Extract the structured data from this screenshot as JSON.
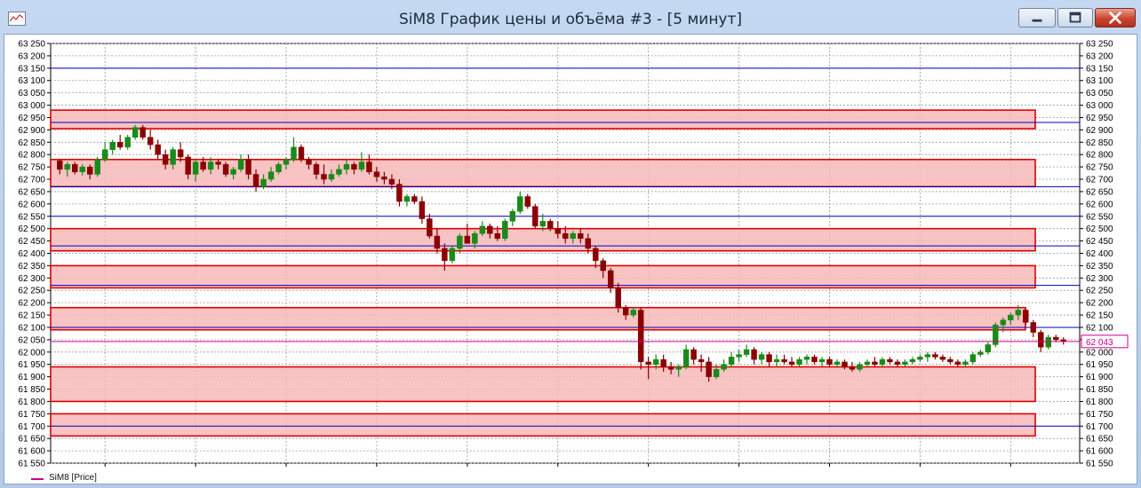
{
  "window": {
    "title": "SiM8 График цены и объёма #3 - [5 минут]",
    "buttons": {
      "minimize": "minimize",
      "maximize": "maximize",
      "close": "close"
    }
  },
  "legend": {
    "label": "SiM8 [Price]",
    "color": "#cc0088"
  },
  "current_price_label": "62 043",
  "chart_data": {
    "type": "candlestick",
    "ylim": [
      61550,
      63250
    ],
    "tick_step": 50,
    "tick_labels": [
      "63 250",
      "63 200",
      "63 150",
      "63 100",
      "63 050",
      "63 000",
      "62 950",
      "62 900",
      "62 850",
      "62 800",
      "62 750",
      "62 700",
      "62 650",
      "62 600",
      "62 550",
      "62 500",
      "62 450",
      "62 400",
      "62 350",
      "62 300",
      "62 250",
      "62 200",
      "62 150",
      "62 100",
      "62 050",
      "62 000",
      "61 950",
      "61 900",
      "61 850",
      "61 800",
      "61 750",
      "61 700",
      "61 650",
      "61 600",
      "61 550"
    ],
    "grid": true,
    "colors": {
      "up": "#1a8a1a",
      "down": "#8b0000",
      "zone_fill": "#f6b9b9",
      "zone_border": "#e00000",
      "hline": "#0000c0",
      "current": "#cc0088"
    },
    "current_price": 62043,
    "levels": [
      63150,
      62930,
      62670,
      62550,
      62430,
      62270,
      62100,
      61700
    ],
    "zones": [
      {
        "low": 62905,
        "high": 62980,
        "end": 1.0
      },
      {
        "low": 62670,
        "high": 62780,
        "end": 1.0
      },
      {
        "low": 62410,
        "high": 62500,
        "end": 1.0
      },
      {
        "low": 62260,
        "high": 62350,
        "end": 1.0
      },
      {
        "low": 62090,
        "high": 62180,
        "end": 0.99
      },
      {
        "low": 61800,
        "high": 61940,
        "end": 1.0
      },
      {
        "low": 61660,
        "high": 61750,
        "end": 1.0
      }
    ],
    "candles": [
      [
        62775,
        62780,
        62720,
        62740
      ],
      [
        62740,
        62770,
        62710,
        62760
      ],
      [
        62760,
        62770,
        62720,
        62730
      ],
      [
        62730,
        62760,
        62715,
        62750
      ],
      [
        62750,
        62760,
        62700,
        62720
      ],
      [
        62720,
        62790,
        62710,
        62780
      ],
      [
        62780,
        62850,
        62770,
        62820
      ],
      [
        62820,
        62860,
        62800,
        62850
      ],
      [
        62850,
        62880,
        62820,
        62830
      ],
      [
        62830,
        62880,
        62820,
        62870
      ],
      [
        62870,
        62920,
        62860,
        62910
      ],
      [
        62910,
        62920,
        62860,
        62870
      ],
      [
        62870,
        62900,
        62820,
        62840
      ],
      [
        62840,
        62860,
        62780,
        62800
      ],
      [
        62800,
        62820,
        62740,
        62760
      ],
      [
        62760,
        62830,
        62740,
        62820
      ],
      [
        62820,
        62850,
        62770,
        62790
      ],
      [
        62790,
        62800,
        62700,
        62720
      ],
      [
        62720,
        62780,
        62690,
        62770
      ],
      [
        62770,
        62790,
        62730,
        62740
      ],
      [
        62740,
        62790,
        62720,
        62770
      ],
      [
        62770,
        62780,
        62740,
        62760
      ],
      [
        62760,
        62770,
        62710,
        62720
      ],
      [
        62720,
        62750,
        62700,
        62740
      ],
      [
        62740,
        62800,
        62730,
        62780
      ],
      [
        62780,
        62800,
        62700,
        62720
      ],
      [
        62720,
        62740,
        62650,
        62670
      ],
      [
        62670,
        62720,
        62660,
        62700
      ],
      [
        62700,
        62750,
        62690,
        62730
      ],
      [
        62730,
        62770,
        62720,
        62760
      ],
      [
        62760,
        62790,
        62740,
        62780
      ],
      [
        62780,
        62870,
        62770,
        62830
      ],
      [
        62830,
        62840,
        62770,
        62780
      ],
      [
        62780,
        62790,
        62740,
        62760
      ],
      [
        62760,
        62770,
        62700,
        62720
      ],
      [
        62720,
        62760,
        62680,
        62700
      ],
      [
        62700,
        62740,
        62690,
        62720
      ],
      [
        62720,
        62760,
        62710,
        62740
      ],
      [
        62740,
        62780,
        62720,
        62760
      ],
      [
        62760,
        62770,
        62720,
        62740
      ],
      [
        62740,
        62810,
        62730,
        62770
      ],
      [
        62770,
        62800,
        62720,
        62730
      ],
      [
        62730,
        62750,
        62690,
        62710
      ],
      [
        62710,
        62730,
        62680,
        62700
      ],
      [
        62700,
        62720,
        62660,
        62680
      ],
      [
        62680,
        62700,
        62590,
        62610
      ],
      [
        62610,
        62640,
        62590,
        62630
      ],
      [
        62630,
        62640,
        62600,
        62610
      ],
      [
        62610,
        62630,
        62520,
        62540
      ],
      [
        62540,
        62560,
        62460,
        62470
      ],
      [
        62470,
        62500,
        62400,
        62420
      ],
      [
        62420,
        62440,
        62330,
        62370
      ],
      [
        62370,
        62430,
        62360,
        62420
      ],
      [
        62420,
        62480,
        62400,
        62470
      ],
      [
        62470,
        62520,
        62440,
        62440
      ],
      [
        62440,
        62490,
        62420,
        62480
      ],
      [
        62480,
        62530,
        62470,
        62510
      ],
      [
        62510,
        62520,
        62460,
        62480
      ],
      [
        62480,
        62510,
        62450,
        62460
      ],
      [
        62460,
        62540,
        62450,
        62530
      ],
      [
        62530,
        62580,
        62510,
        62570
      ],
      [
        62570,
        62650,
        62560,
        62630
      ],
      [
        62630,
        62640,
        62580,
        62590
      ],
      [
        62590,
        62600,
        62500,
        62510
      ],
      [
        62510,
        62560,
        62490,
        62530
      ],
      [
        62530,
        62540,
        62490,
        62500
      ],
      [
        62500,
        62530,
        62460,
        62480
      ],
      [
        62480,
        62510,
        62440,
        62460
      ],
      [
        62460,
        62490,
        62440,
        62480
      ],
      [
        62480,
        62500,
        62440,
        62460
      ],
      [
        62460,
        62480,
        62400,
        62420
      ],
      [
        62420,
        62430,
        62340,
        62370
      ],
      [
        62370,
        62380,
        62300,
        62330
      ],
      [
        62330,
        62340,
        62240,
        62260
      ],
      [
        62260,
        62280,
        62160,
        62180
      ],
      [
        62180,
        62190,
        62130,
        62150
      ],
      [
        62150,
        62180,
        62140,
        62170
      ],
      [
        62170,
        62180,
        61930,
        61960
      ],
      [
        61960,
        61980,
        61890,
        61950
      ],
      [
        61950,
        61990,
        61930,
        61970
      ],
      [
        61970,
        61990,
        61920,
        61940
      ],
      [
        61940,
        61960,
        61910,
        61930
      ],
      [
        61930,
        61950,
        61900,
        61940
      ],
      [
        61940,
        62030,
        61930,
        62010
      ],
      [
        62010,
        62020,
        61950,
        61970
      ],
      [
        61970,
        61990,
        61920,
        61960
      ],
      [
        61960,
        61980,
        61880,
        61900
      ],
      [
        61900,
        61950,
        61890,
        61930
      ],
      [
        61930,
        61970,
        61920,
        61950
      ],
      [
        61950,
        62000,
        61940,
        61980
      ],
      [
        61980,
        62010,
        61960,
        61990
      ],
      [
        61990,
        62030,
        61980,
        62010
      ],
      [
        62010,
        62020,
        61950,
        61970
      ],
      [
        61970,
        62000,
        61950,
        61990
      ],
      [
        61990,
        62000,
        61940,
        61960
      ],
      [
        61960,
        61990,
        61940,
        61970
      ],
      [
        61970,
        61990,
        61950,
        61960
      ],
      [
        61960,
        61980,
        61940,
        61950
      ],
      [
        61950,
        61980,
        61940,
        61970
      ],
      [
        61970,
        61990,
        61950,
        61980
      ],
      [
        61980,
        61990,
        61950,
        61960
      ],
      [
        61960,
        61980,
        61940,
        61970
      ],
      [
        61970,
        61980,
        61940,
        61950
      ],
      [
        61950,
        61970,
        61940,
        61960
      ],
      [
        61960,
        61970,
        61930,
        61940
      ],
      [
        61940,
        61960,
        61920,
        61930
      ],
      [
        61930,
        61960,
        61920,
        61950
      ],
      [
        61950,
        61970,
        61940,
        61960
      ],
      [
        61960,
        61980,
        61940,
        61950
      ],
      [
        61950,
        61980,
        61940,
        61970
      ],
      [
        61970,
        61980,
        61950,
        61960
      ],
      [
        61960,
        61970,
        61940,
        61950
      ],
      [
        61950,
        61970,
        61940,
        61960
      ],
      [
        61960,
        61980,
        61950,
        61970
      ],
      [
        61970,
        61990,
        61960,
        61980
      ],
      [
        61980,
        62000,
        61960,
        61990
      ],
      [
        61990,
        62000,
        61970,
        61980
      ],
      [
        61980,
        61990,
        61960,
        61970
      ],
      [
        61970,
        61980,
        61950,
        61960
      ],
      [
        61960,
        61970,
        61940,
        61950
      ],
      [
        61950,
        61970,
        61940,
        61960
      ],
      [
        61960,
        62000,
        61950,
        61990
      ],
      [
        61990,
        62010,
        61980,
        62000
      ],
      [
        62000,
        62040,
        61990,
        62030
      ],
      [
        62030,
        62120,
        62020,
        62110
      ],
      [
        62110,
        62140,
        62080,
        62130
      ],
      [
        62130,
        62160,
        62110,
        62150
      ],
      [
        62150,
        62190,
        62130,
        62170
      ],
      [
        62170,
        62180,
        62110,
        62120
      ],
      [
        62120,
        62130,
        62060,
        62080
      ],
      [
        62080,
        62090,
        62000,
        62020
      ],
      [
        62020,
        62070,
        62010,
        62060
      ],
      [
        62060,
        62070,
        62040,
        62050
      ],
      [
        62050,
        62060,
        62030,
        62043
      ]
    ]
  }
}
